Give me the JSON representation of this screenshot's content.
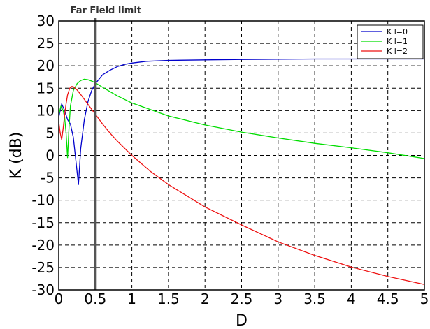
{
  "chart_data": {
    "type": "line",
    "title": "",
    "xlabel": "D",
    "ylabel": "K (dB)",
    "xlim": [
      0,
      5
    ],
    "ylim": [
      -30,
      30
    ],
    "x_ticks": [
      0,
      0.5,
      1,
      1.5,
      2,
      2.5,
      3,
      3.5,
      4,
      4.5,
      5
    ],
    "x_tick_labels": [
      "0",
      "0.5",
      "1",
      "1.5",
      "2",
      "2.5",
      "3",
      "3.5",
      "4",
      "4.5",
      "5"
    ],
    "y_ticks": [
      -30,
      -25,
      -20,
      -15,
      -10,
      -5,
      0,
      5,
      10,
      15,
      20,
      25,
      30
    ],
    "y_tick_labels": [
      "-30",
      "-25",
      "-20",
      "-15",
      "-10",
      "-5",
      "0",
      "5",
      "10",
      "15",
      "20",
      "25",
      "30"
    ],
    "grid": true,
    "legend_position": "top-right",
    "annotation": {
      "text": "Far Field limit",
      "x": 0.5
    },
    "series": [
      {
        "name": "K l=0",
        "color": "#0000cc",
        "x": [
          0.0,
          0.04,
          0.08,
          0.12,
          0.16,
          0.2,
          0.24,
          0.27,
          0.3,
          0.35,
          0.4,
          0.45,
          0.5,
          0.6,
          0.7,
          0.8,
          0.9,
          1.0,
          1.2,
          1.5,
          2.0,
          2.5,
          3.0,
          3.5,
          4.0,
          4.5,
          5.0
        ],
        "y": [
          8.5,
          11.5,
          10.0,
          8.0,
          7.0,
          4.0,
          -2.0,
          -6.5,
          1.5,
          8.0,
          12.0,
          14.5,
          16.0,
          18.0,
          19.0,
          19.8,
          20.3,
          20.6,
          21.0,
          21.2,
          21.3,
          21.4,
          21.45,
          21.5,
          21.5,
          21.5,
          21.5
        ]
      },
      {
        "name": "K l=1",
        "color": "#00dd00",
        "x": [
          0.0,
          0.03,
          0.06,
          0.08,
          0.1,
          0.12,
          0.14,
          0.16,
          0.2,
          0.25,
          0.3,
          0.35,
          0.4,
          0.45,
          0.5,
          0.6,
          0.8,
          1.0,
          1.5,
          2.0,
          2.5,
          3.0,
          3.5,
          4.0,
          4.5,
          5.0
        ],
        "y": [
          9.0,
          11.0,
          10.0,
          8.5,
          5.0,
          -0.5,
          6.0,
          11.0,
          14.5,
          16.0,
          16.7,
          17.0,
          16.9,
          16.6,
          16.2,
          15.2,
          13.3,
          11.7,
          8.8,
          6.8,
          5.2,
          3.9,
          2.7,
          1.7,
          0.6,
          -0.7
        ]
      },
      {
        "name": "K l=2",
        "color": "#ee1111",
        "x": [
          0.0,
          0.02,
          0.04,
          0.06,
          0.08,
          0.1,
          0.12,
          0.15,
          0.18,
          0.2,
          0.25,
          0.3,
          0.35,
          0.4,
          0.5,
          0.6,
          0.7,
          0.8,
          1.0,
          1.25,
          1.5,
          2.0,
          2.5,
          3.0,
          3.5,
          4.0,
          4.5,
          5.0
        ],
        "y": [
          7.5,
          5.0,
          3.5,
          6.0,
          9.0,
          11.5,
          13.5,
          15.0,
          15.4,
          15.3,
          14.6,
          13.6,
          12.5,
          11.4,
          9.2,
          7.0,
          5.0,
          3.2,
          0.0,
          -3.5,
          -6.5,
          -11.5,
          -15.5,
          -19.3,
          -22.3,
          -24.9,
          -27.0,
          -28.8
        ]
      }
    ]
  }
}
